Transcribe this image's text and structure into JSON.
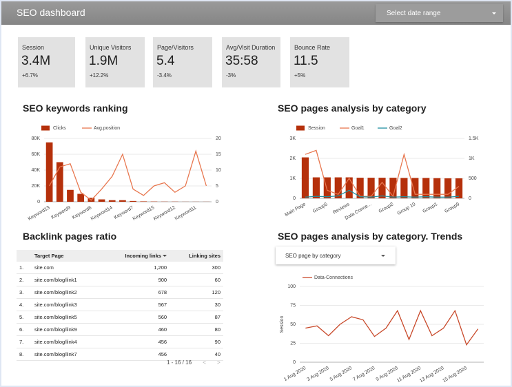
{
  "header": {
    "title": "SEO dashboard",
    "date_select": "Select date range"
  },
  "kpis": [
    {
      "label": "Session",
      "value": "3.4M",
      "change": "+6.7%"
    },
    {
      "label": "Unique Visitors",
      "value": "1.9M",
      "change": "+12.2%"
    },
    {
      "label": "Page/Visitors",
      "value": "5.4",
      "change": "-3.4%"
    },
    {
      "label": "Avg/Visit Duration",
      "value": "35:58",
      "change": "-3%"
    },
    {
      "label": "Bounce Rate",
      "value": "11.5",
      "change": "+5%"
    }
  ],
  "table": {
    "title": "Backlink pages ratio",
    "columns": [
      "Target Page",
      "Incoming links",
      "Linking sites"
    ],
    "rows": [
      [
        "1.",
        "site.com",
        "1,200",
        "300"
      ],
      [
        "2.",
        "site.com/blog/link1",
        "900",
        "60"
      ],
      [
        "3.",
        "site.com/blog/link2",
        "678",
        "120"
      ],
      [
        "4.",
        "site.com/blog/link3",
        "567",
        "30"
      ],
      [
        "5.",
        "site.com/blog/link5",
        "560",
        "87"
      ],
      [
        "6.",
        "site.com/blog/link9",
        "460",
        "80"
      ],
      [
        "7.",
        "site.com/blog/link4",
        "456",
        "90"
      ],
      [
        "8.",
        "site.com/blog/link7",
        "456",
        "40"
      ]
    ],
    "pagination": "1 - 16 / 16"
  },
  "trend_select": "SEO page by category",
  "chart_data": [
    {
      "type": "combo",
      "title": "SEO keywords ranking",
      "categories": [
        "Keyword13",
        null,
        "Keyword9",
        null,
        "Keyword6",
        null,
        "Keyword14",
        null,
        "Keyword7",
        null,
        "Keyword15",
        null,
        "Keyword12",
        null,
        "Keyword11",
        null
      ],
      "series": [
        {
          "name": "Clicks",
          "type": "bar",
          "color": "#b5300b",
          "values": [
            75000,
            50000,
            15000,
            10000,
            5000,
            3000,
            2000,
            2000,
            1000,
            500,
            300,
            200,
            200,
            100,
            100,
            100
          ]
        },
        {
          "name": "Avg.position",
          "type": "line",
          "axis": "y2",
          "color": "#e8774f",
          "values": [
            5,
            11,
            12,
            3,
            0.5,
            4,
            8,
            15,
            4,
            2,
            5,
            6,
            3,
            5,
            16,
            5
          ]
        }
      ],
      "ylim": [
        0,
        80000
      ],
      "yticks": [
        0,
        {
          "value": 20000,
          "label": "20K"
        },
        {
          "value": 40000,
          "label": "40K"
        },
        {
          "value": 60000,
          "label": "60K"
        },
        {
          "value": 80000,
          "label": "80K"
        }
      ],
      "y2lim": [
        0,
        20
      ],
      "y2ticks": [
        0,
        5,
        10,
        15,
        20
      ],
      "grid": true
    },
    {
      "type": "combo",
      "title": "SEO pages analysis by category",
      "categories": [
        "Main Page",
        null,
        "Group5",
        null,
        "Reviews",
        null,
        "Data Conne...",
        null,
        "Group2",
        null,
        "Group 10",
        null,
        "Group1",
        null,
        "Group9"
      ],
      "series": [
        {
          "name": "Session",
          "type": "bar",
          "color": "#b5300b",
          "values": [
            2050,
            1050,
            1050,
            1050,
            1050,
            1030,
            1030,
            1030,
            1030,
            1020,
            1020,
            1020,
            1010,
            1000,
            1000
          ]
        },
        {
          "name": "Goal1",
          "type": "line",
          "axis": "y2",
          "color": "#e8774f",
          "values": [
            1100,
            1200,
            200,
            100,
            500,
            50,
            50,
            400,
            50,
            1100,
            100,
            100,
            100,
            100,
            300
          ]
        },
        {
          "name": "Goal2",
          "type": "line",
          "axis": "y2",
          "color": "#1f8fa0",
          "values": [
            30,
            50,
            40,
            60,
            200,
            40,
            30,
            60,
            30,
            40,
            30,
            40,
            30,
            30,
            50
          ]
        }
      ],
      "ylim": [
        0,
        3000
      ],
      "yticks": [
        0,
        {
          "value": 1000,
          "label": "1K"
        },
        {
          "value": 2000,
          "label": "2K"
        },
        {
          "value": 3000,
          "label": "3K"
        }
      ],
      "y2lim": [
        0,
        1500
      ],
      "y2ticks": [
        0,
        500,
        {
          "value": 1000,
          "label": "1K"
        },
        {
          "value": 1500,
          "label": "1.5K"
        }
      ],
      "grid": true
    },
    {
      "type": "line",
      "title": "SEO pages analysis by category. Trends",
      "y_label": "Session",
      "categories": [
        "1 Aug 2020",
        null,
        "3 Aug 2020",
        null,
        "5 Aug 2020",
        null,
        "7 Aug 2020",
        null,
        "9 Aug 2020",
        null,
        "11 Aug 2020",
        null,
        "13 Aug 2020",
        null,
        "15 Aug 2020",
        null
      ],
      "series": [
        {
          "name": "Data-Connections",
          "type": "line",
          "color": "#c8492a",
          "values": [
            45,
            48,
            35,
            50,
            60,
            56,
            34,
            45,
            68,
            30,
            68,
            35,
            45,
            68,
            23,
            44
          ]
        }
      ],
      "ylim": [
        0,
        100
      ],
      "yticks": [
        0,
        25,
        50,
        75,
        100
      ],
      "grid": true
    }
  ]
}
